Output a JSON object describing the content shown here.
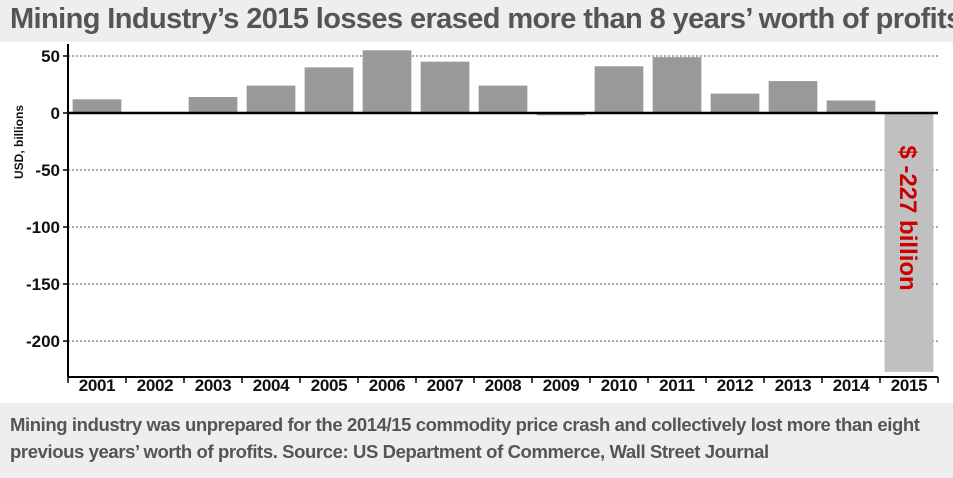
{
  "title": "Mining Industry’s 2015 losses erased more than 8 years’ worth of profits",
  "caption": "Mining industry was unprepared for the 2014/15 commodity price crash and collectively lost more than eight previous years’ worth of profits. Source: US Department of Commerce, Wall Street Journal",
  "colors": {
    "bar": "#999999",
    "highlight_bar": "#c0c0c0",
    "annotation": "#cc0000",
    "panel_background": "#eeeeee"
  },
  "chart_data": {
    "type": "bar",
    "title": "",
    "xlabel": "",
    "ylabel": "USD, billions",
    "categories": [
      "2001",
      "2002",
      "2003",
      "2004",
      "2005",
      "2006",
      "2007",
      "2008",
      "2009",
      "2010",
      "2011",
      "2012",
      "2013",
      "2014",
      "2015"
    ],
    "values": [
      12,
      1,
      14,
      24,
      40,
      55,
      45,
      24,
      -2,
      41,
      49,
      17,
      28,
      11,
      -227
    ],
    "ylim": [
      -228,
      57
    ],
    "yticks": [
      50,
      0,
      -50,
      -100,
      -150,
      -200
    ],
    "grid": "horizontal dotted",
    "legend": "none",
    "annotation": {
      "category": "2015",
      "text": "$ -227 billion"
    }
  }
}
